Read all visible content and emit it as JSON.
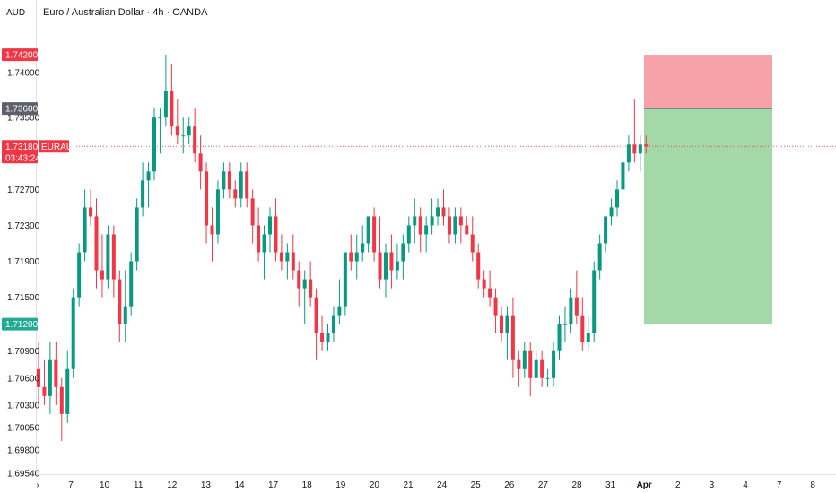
{
  "header": {
    "currency_label": "AUD",
    "title": "Euro / Australian Dollar · 4h · OANDA"
  },
  "chart_data": {
    "type": "candlestick",
    "ylim": [
      1.6954,
      1.7453
    ],
    "y_ticks": [
      "1.74000",
      "1.73500",
      "1.72700",
      "1.72300",
      "1.71900",
      "1.71500",
      "1.70900",
      "1.70600",
      "1.70300",
      "1.70050",
      "1.69800",
      "1.69540"
    ],
    "x_ticks": [
      "7",
      "10",
      "11",
      "12",
      "13",
      "14",
      "17",
      "18",
      "19",
      "20",
      "21",
      "24",
      "25",
      "26",
      "27",
      "28",
      "31",
      "Apr",
      "2",
      "3",
      "4",
      "7",
      "8"
    ],
    "price_labels": [
      {
        "value": "1.74200",
        "price": 1.742,
        "color": "#f23645",
        "name": "stop-loss-label"
      },
      {
        "value": "1.73600",
        "price": 1.736,
        "color": "#5d606b",
        "name": "entry-label"
      },
      {
        "value": "1.73180",
        "price": 1.7318,
        "color": "#f23645",
        "name": "current-price-label"
      },
      {
        "value": "1.71200",
        "price": 1.712,
        "color": "#22ab94",
        "name": "take-profit-label"
      }
    ],
    "symbol_tag": "EURAUD",
    "countdown": "03:43:24",
    "current_price": 1.7318,
    "position": {
      "entry": 1.736,
      "stop": 1.742,
      "target": 1.712,
      "loss_color": "#f7a1a8",
      "profit_color": "#a5d8a8"
    },
    "colors": {
      "up": "#089981",
      "down": "#f23645"
    },
    "candles": [
      [
        1.707,
        1.71,
        1.703,
        1.705
      ],
      [
        1.705,
        1.708,
        1.703,
        1.704
      ],
      [
        1.704,
        1.71,
        1.702,
        1.708
      ],
      [
        1.708,
        1.71,
        1.703,
        1.705
      ],
      [
        1.705,
        1.706,
        1.699,
        1.702
      ],
      [
        1.702,
        1.709,
        1.701,
        1.707
      ],
      [
        1.707,
        1.716,
        1.706,
        1.715
      ],
      [
        1.715,
        1.721,
        1.714,
        1.72
      ],
      [
        1.72,
        1.727,
        1.719,
        1.725
      ],
      [
        1.725,
        1.727,
        1.723,
        1.724
      ],
      [
        1.724,
        1.726,
        1.716,
        1.718
      ],
      [
        1.718,
        1.722,
        1.715,
        1.717
      ],
      [
        1.717,
        1.723,
        1.716,
        1.722
      ],
      [
        1.722,
        1.723,
        1.715,
        1.717
      ],
      [
        1.717,
        1.718,
        1.71,
        1.712
      ],
      [
        1.712,
        1.718,
        1.71,
        1.714
      ],
      [
        1.714,
        1.72,
        1.713,
        1.719
      ],
      [
        1.719,
        1.726,
        1.718,
        1.725
      ],
      [
        1.725,
        1.73,
        1.724,
        1.728
      ],
      [
        1.728,
        1.73,
        1.725,
        1.729
      ],
      [
        1.729,
        1.736,
        1.728,
        1.735
      ],
      [
        1.735,
        1.736,
        1.731,
        1.735
      ],
      [
        1.735,
        1.742,
        1.734,
        1.738
      ],
      [
        1.738,
        1.741,
        1.733,
        1.734
      ],
      [
        1.734,
        1.737,
        1.732,
        1.733
      ],
      [
        1.733,
        1.735,
        1.731,
        1.733
      ],
      [
        1.733,
        1.735,
        1.732,
        1.734
      ],
      [
        1.734,
        1.736,
        1.73,
        1.731
      ],
      [
        1.731,
        1.733,
        1.727,
        1.729
      ],
      [
        1.729,
        1.73,
        1.721,
        1.723
      ],
      [
        1.723,
        1.725,
        1.719,
        1.722
      ],
      [
        1.722,
        1.728,
        1.721,
        1.727
      ],
      [
        1.727,
        1.73,
        1.726,
        1.729
      ],
      [
        1.729,
        1.73,
        1.726,
        1.727
      ],
      [
        1.727,
        1.728,
        1.725,
        1.726
      ],
      [
        1.726,
        1.73,
        1.725,
        1.729
      ],
      [
        1.729,
        1.73,
        1.725,
        1.726
      ],
      [
        1.726,
        1.727,
        1.721,
        1.723
      ],
      [
        1.723,
        1.725,
        1.719,
        1.72
      ],
      [
        1.72,
        1.723,
        1.717,
        1.722
      ],
      [
        1.722,
        1.725,
        1.72,
        1.724
      ],
      [
        1.724,
        1.726,
        1.719,
        1.72
      ],
      [
        1.72,
        1.722,
        1.718,
        1.719
      ],
      [
        1.719,
        1.721,
        1.717,
        1.72
      ],
      [
        1.72,
        1.722,
        1.717,
        1.718
      ],
      [
        1.718,
        1.719,
        1.714,
        1.716
      ],
      [
        1.716,
        1.718,
        1.712,
        1.717
      ],
      [
        1.717,
        1.719,
        1.714,
        1.715
      ],
      [
        1.715,
        1.716,
        1.708,
        1.711
      ],
      [
        1.711,
        1.713,
        1.709,
        1.71
      ],
      [
        1.71,
        1.712,
        1.709,
        1.711
      ],
      [
        1.711,
        1.714,
        1.71,
        1.713
      ],
      [
        1.713,
        1.717,
        1.712,
        1.714
      ],
      [
        1.714,
        1.72,
        1.713,
        1.72
      ],
      [
        1.72,
        1.722,
        1.718,
        1.719
      ],
      [
        1.719,
        1.722,
        1.717,
        1.72
      ],
      [
        1.72,
        1.723,
        1.719,
        1.721
      ],
      [
        1.721,
        1.724,
        1.72,
        1.724
      ],
      [
        1.724,
        1.725,
        1.719,
        1.72
      ],
      [
        1.72,
        1.724,
        1.716,
        1.717
      ],
      [
        1.717,
        1.721,
        1.715,
        1.72
      ],
      [
        1.72,
        1.722,
        1.716,
        1.718
      ],
      [
        1.718,
        1.721,
        1.717,
        1.719
      ],
      [
        1.719,
        1.722,
        1.717,
        1.721
      ],
      [
        1.721,
        1.724,
        1.72,
        1.723
      ],
      [
        1.723,
        1.726,
        1.721,
        1.724
      ],
      [
        1.724,
        1.725,
        1.72,
        1.722
      ],
      [
        1.722,
        1.724,
        1.72,
        1.723
      ],
      [
        1.723,
        1.726,
        1.722,
        1.724
      ],
      [
        1.724,
        1.726,
        1.723,
        1.725
      ],
      [
        1.725,
        1.727,
        1.723,
        1.724
      ],
      [
        1.724,
        1.725,
        1.721,
        1.722
      ],
      [
        1.722,
        1.725,
        1.721,
        1.724
      ],
      [
        1.724,
        1.725,
        1.721,
        1.723
      ],
      [
        1.723,
        1.724,
        1.722,
        1.722
      ],
      [
        1.722,
        1.724,
        1.719,
        1.72
      ],
      [
        1.72,
        1.721,
        1.716,
        1.717
      ],
      [
        1.717,
        1.718,
        1.715,
        1.716
      ],
      [
        1.716,
        1.718,
        1.714,
        1.715
      ],
      [
        1.715,
        1.716,
        1.711,
        1.713
      ],
      [
        1.713,
        1.714,
        1.71,
        1.711
      ],
      [
        1.711,
        1.714,
        1.708,
        1.713
      ],
      [
        1.713,
        1.715,
        1.706,
        1.708
      ],
      [
        1.708,
        1.709,
        1.705,
        1.707
      ],
      [
        1.707,
        1.71,
        1.706,
        1.709
      ],
      [
        1.709,
        1.71,
        1.704,
        1.706
      ],
      [
        1.706,
        1.709,
        1.706,
        1.708
      ],
      [
        1.708,
        1.709,
        1.705,
        1.706
      ],
      [
        1.706,
        1.707,
        1.705,
        1.706
      ],
      [
        1.706,
        1.71,
        1.705,
        1.709
      ],
      [
        1.709,
        1.713,
        1.708,
        1.712
      ],
      [
        1.712,
        1.714,
        1.71,
        1.712
      ],
      [
        1.712,
        1.716,
        1.711,
        1.715
      ],
      [
        1.715,
        1.718,
        1.712,
        1.713
      ],
      [
        1.713,
        1.715,
        1.709,
        1.71
      ],
      [
        1.71,
        1.713,
        1.709,
        1.711
      ],
      [
        1.711,
        1.719,
        1.71,
        1.718
      ],
      [
        1.718,
        1.722,
        1.717,
        1.721
      ],
      [
        1.721,
        1.724,
        1.72,
        1.724
      ],
      [
        1.724,
        1.726,
        1.723,
        1.725
      ],
      [
        1.725,
        1.728,
        1.724,
        1.727
      ],
      [
        1.727,
        1.731,
        1.726,
        1.73
      ],
      [
        1.73,
        1.733,
        1.729,
        1.732
      ],
      [
        1.732,
        1.737,
        1.73,
        1.731
      ],
      [
        1.731,
        1.733,
        1.729,
        1.732
      ],
      [
        1.732,
        1.733,
        1.731,
        1.7318
      ]
    ]
  }
}
